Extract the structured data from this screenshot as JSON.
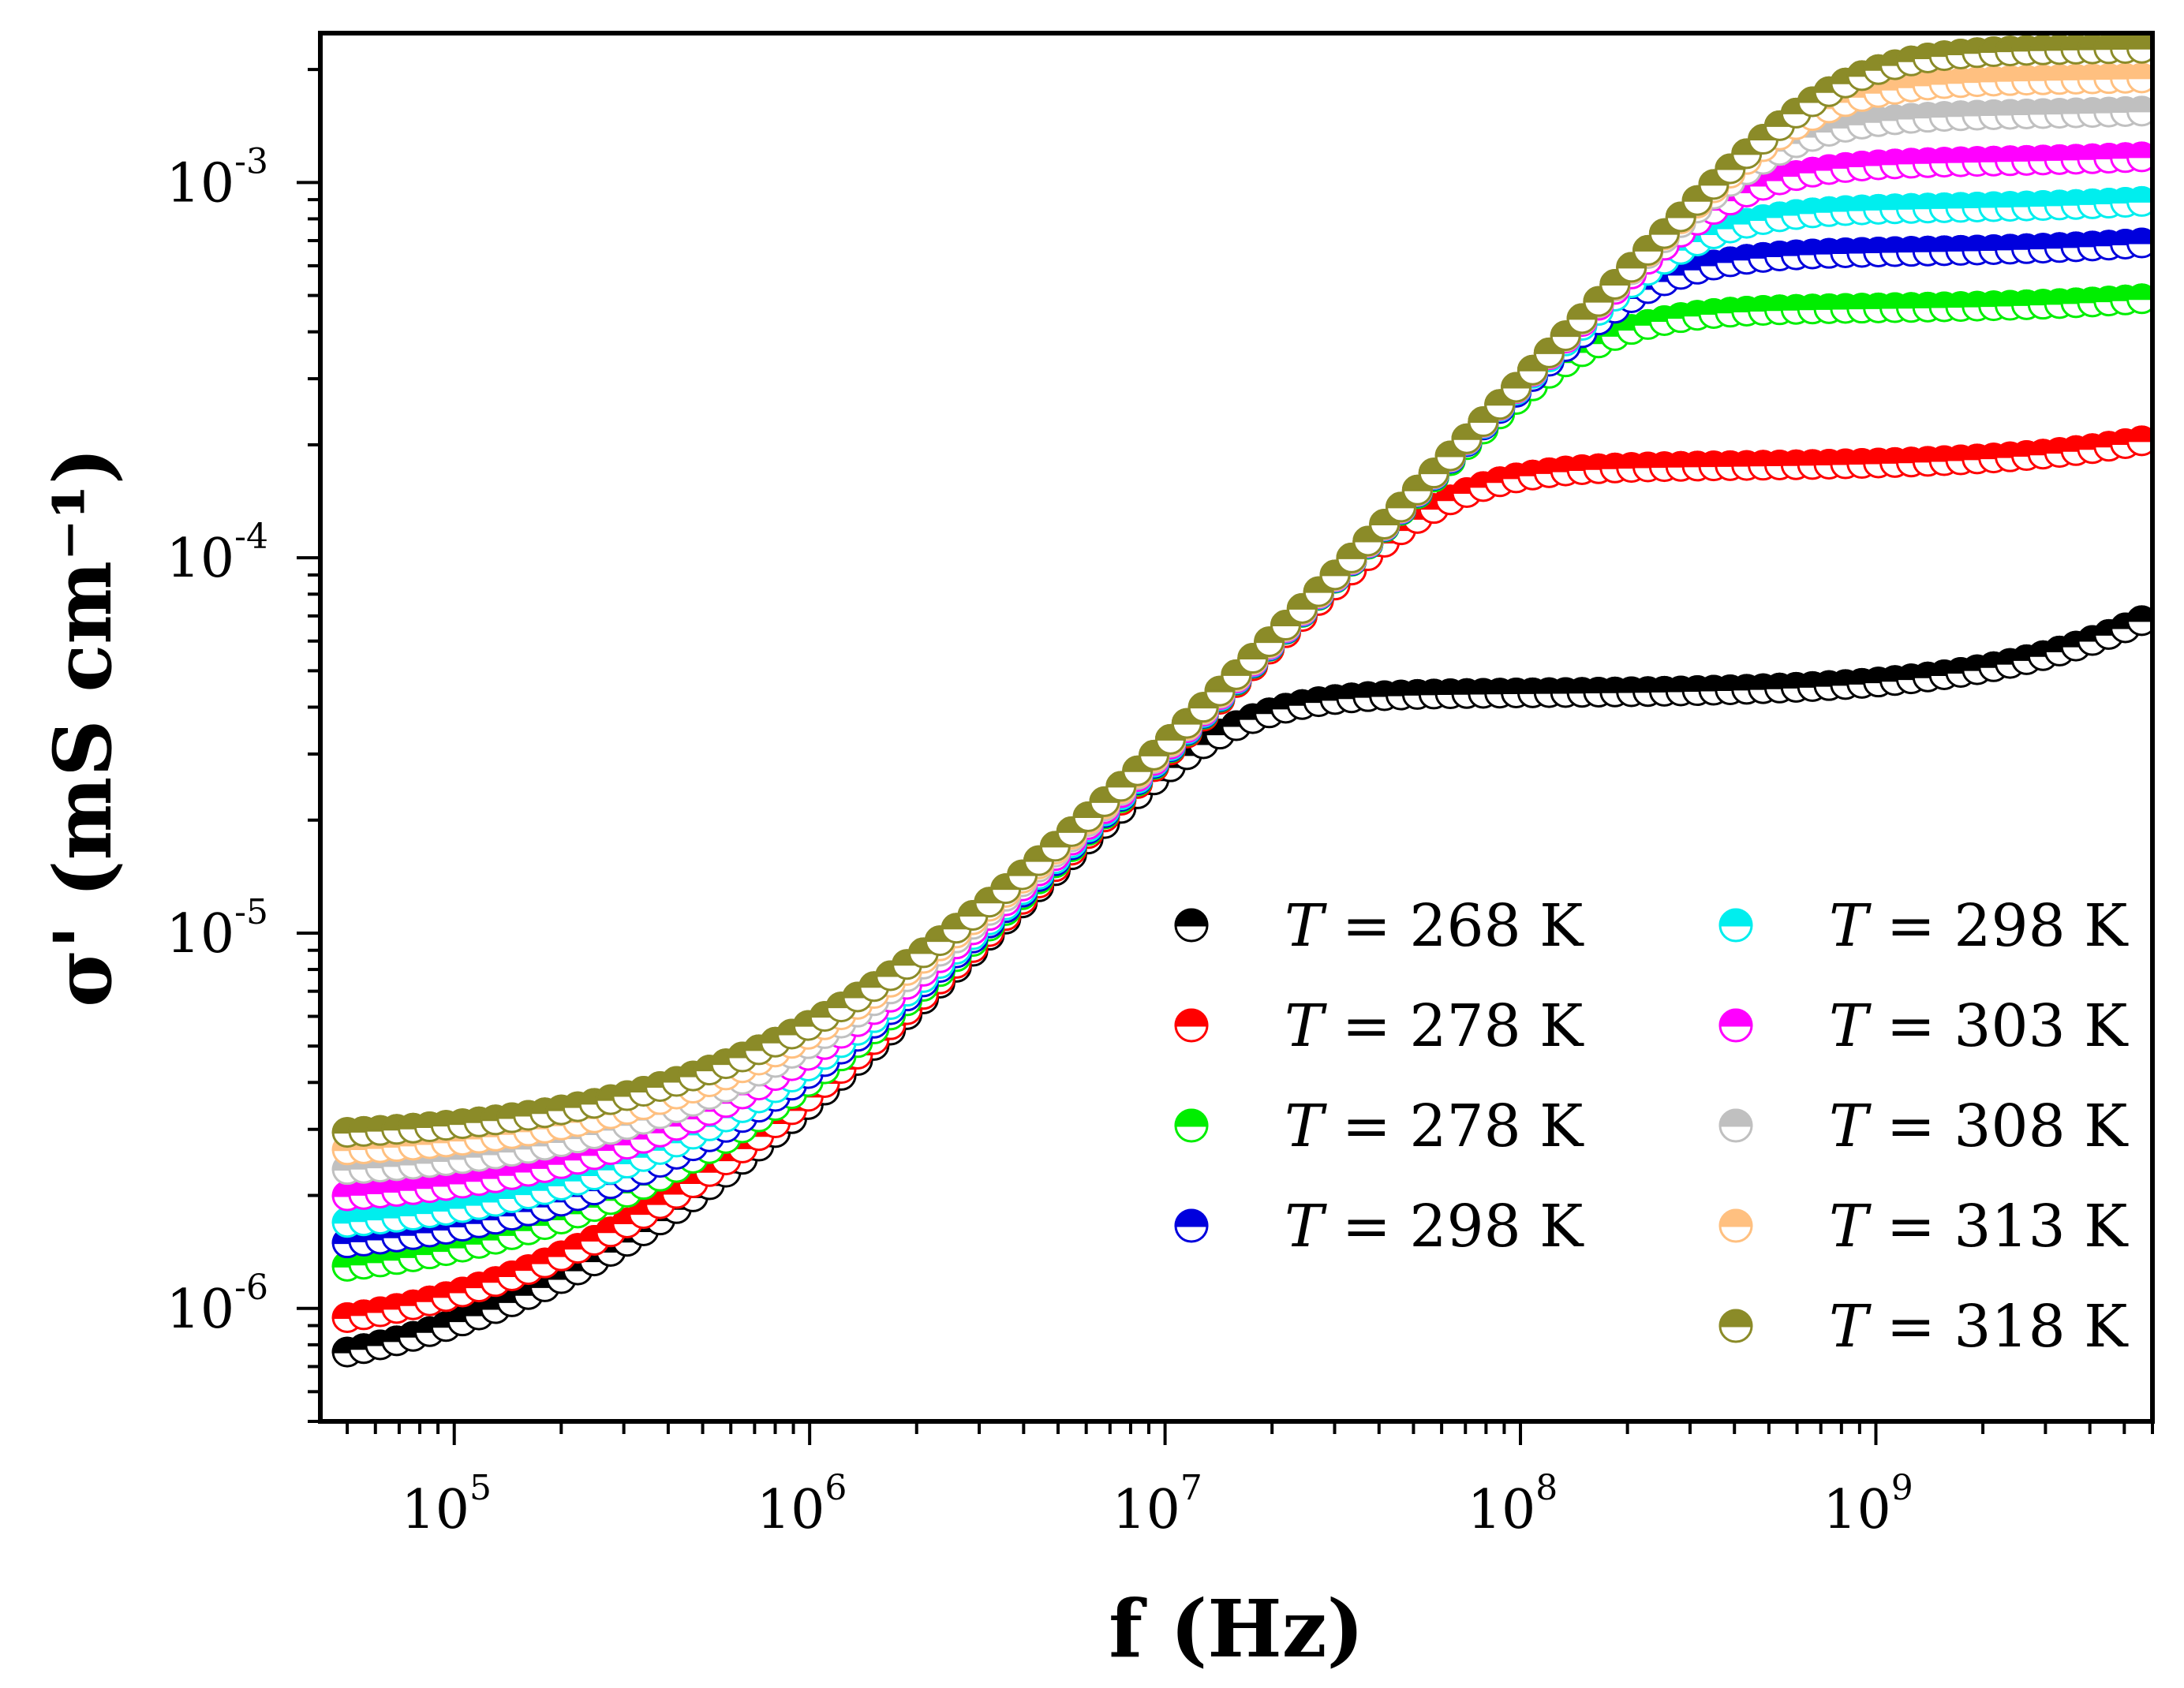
{
  "chart_data": {
    "type": "scatter",
    "xscale": "log",
    "yscale": "log",
    "xlabel": "f (Hz)",
    "ylabel": "σ' (mS cm⁻¹)",
    "xlim": [
      42000,
      6000000000
    ],
    "ylim": [
      5e-07,
      0.0025
    ],
    "x_ticks": [
      {
        "base": "10",
        "exp": "5",
        "value": 100000
      },
      {
        "base": "10",
        "exp": "6",
        "value": 1000000
      },
      {
        "base": "10",
        "exp": "7",
        "value": 10000000
      },
      {
        "base": "10",
        "exp": "8",
        "value": 100000000
      },
      {
        "base": "10",
        "exp": "9",
        "value": 1000000000
      }
    ],
    "y_ticks": [
      {
        "base": "10",
        "exp": "-6",
        "value": 1e-06
      },
      {
        "base": "10",
        "exp": "-5",
        "value": 1e-05
      },
      {
        "base": "10",
        "exp": "-4",
        "value": 0.0001
      },
      {
        "base": "10",
        "exp": "-3",
        "value": 0.001
      }
    ],
    "marker": "half-filled circle (top half filled, bottom half white with colored outline)",
    "x_range": [
      50000,
      5600000000
    ],
    "points_per_series": 110,
    "series": [
      {
        "label_var": "T",
        "label_text": " = 268 K",
        "color": "#000000",
        "low_freq_value": 6.2e-07,
        "plateau_value": 4.35e-05,
        "high_freq_value": 6.8e-05
      },
      {
        "label_var": "T",
        "label_text": " = 278 K",
        "color": "#ff0000",
        "low_freq_value": 8e-07,
        "plateau_value": 0.000175,
        "high_freq_value": 0.000205
      },
      {
        "label_var": "T",
        "label_text": " = 278 K",
        "color": "#00ee00",
        "low_freq_value": 1.15e-06,
        "plateau_value": 0.00046,
        "high_freq_value": 0.00049
      },
      {
        "label_var": "T",
        "label_text": " = 298 K",
        "color": "#0000dd",
        "low_freq_value": 1.35e-06,
        "plateau_value": 0.00065,
        "high_freq_value": 0.00069
      },
      {
        "label_var": "T",
        "label_text": " = 298 K",
        "color": "#00eeee",
        "low_freq_value": 1.55e-06,
        "plateau_value": 0.00085,
        "high_freq_value": 0.00089
      },
      {
        "label_var": "T",
        "label_text": " = 303 K",
        "color": "#ff00ff",
        "low_freq_value": 1.85e-06,
        "plateau_value": 0.00113,
        "high_freq_value": 0.00117
      },
      {
        "label_var": "T",
        "label_text": " = 308 K",
        "color": "#c0c0c0",
        "low_freq_value": 2.2e-06,
        "plateau_value": 0.00151,
        "high_freq_value": 0.00155
      },
      {
        "label_var": "T",
        "label_text": " = 313 K",
        "color": "#ffc080",
        "low_freq_value": 2.5e-06,
        "plateau_value": 0.00187,
        "high_freq_value": 0.0019
      },
      {
        "label_var": "T",
        "label_text": " = 318 K",
        "color": "#8b8b28",
        "low_freq_value": 2.8e-06,
        "plateau_value": 0.00226,
        "high_freq_value": 0.00228
      }
    ]
  }
}
